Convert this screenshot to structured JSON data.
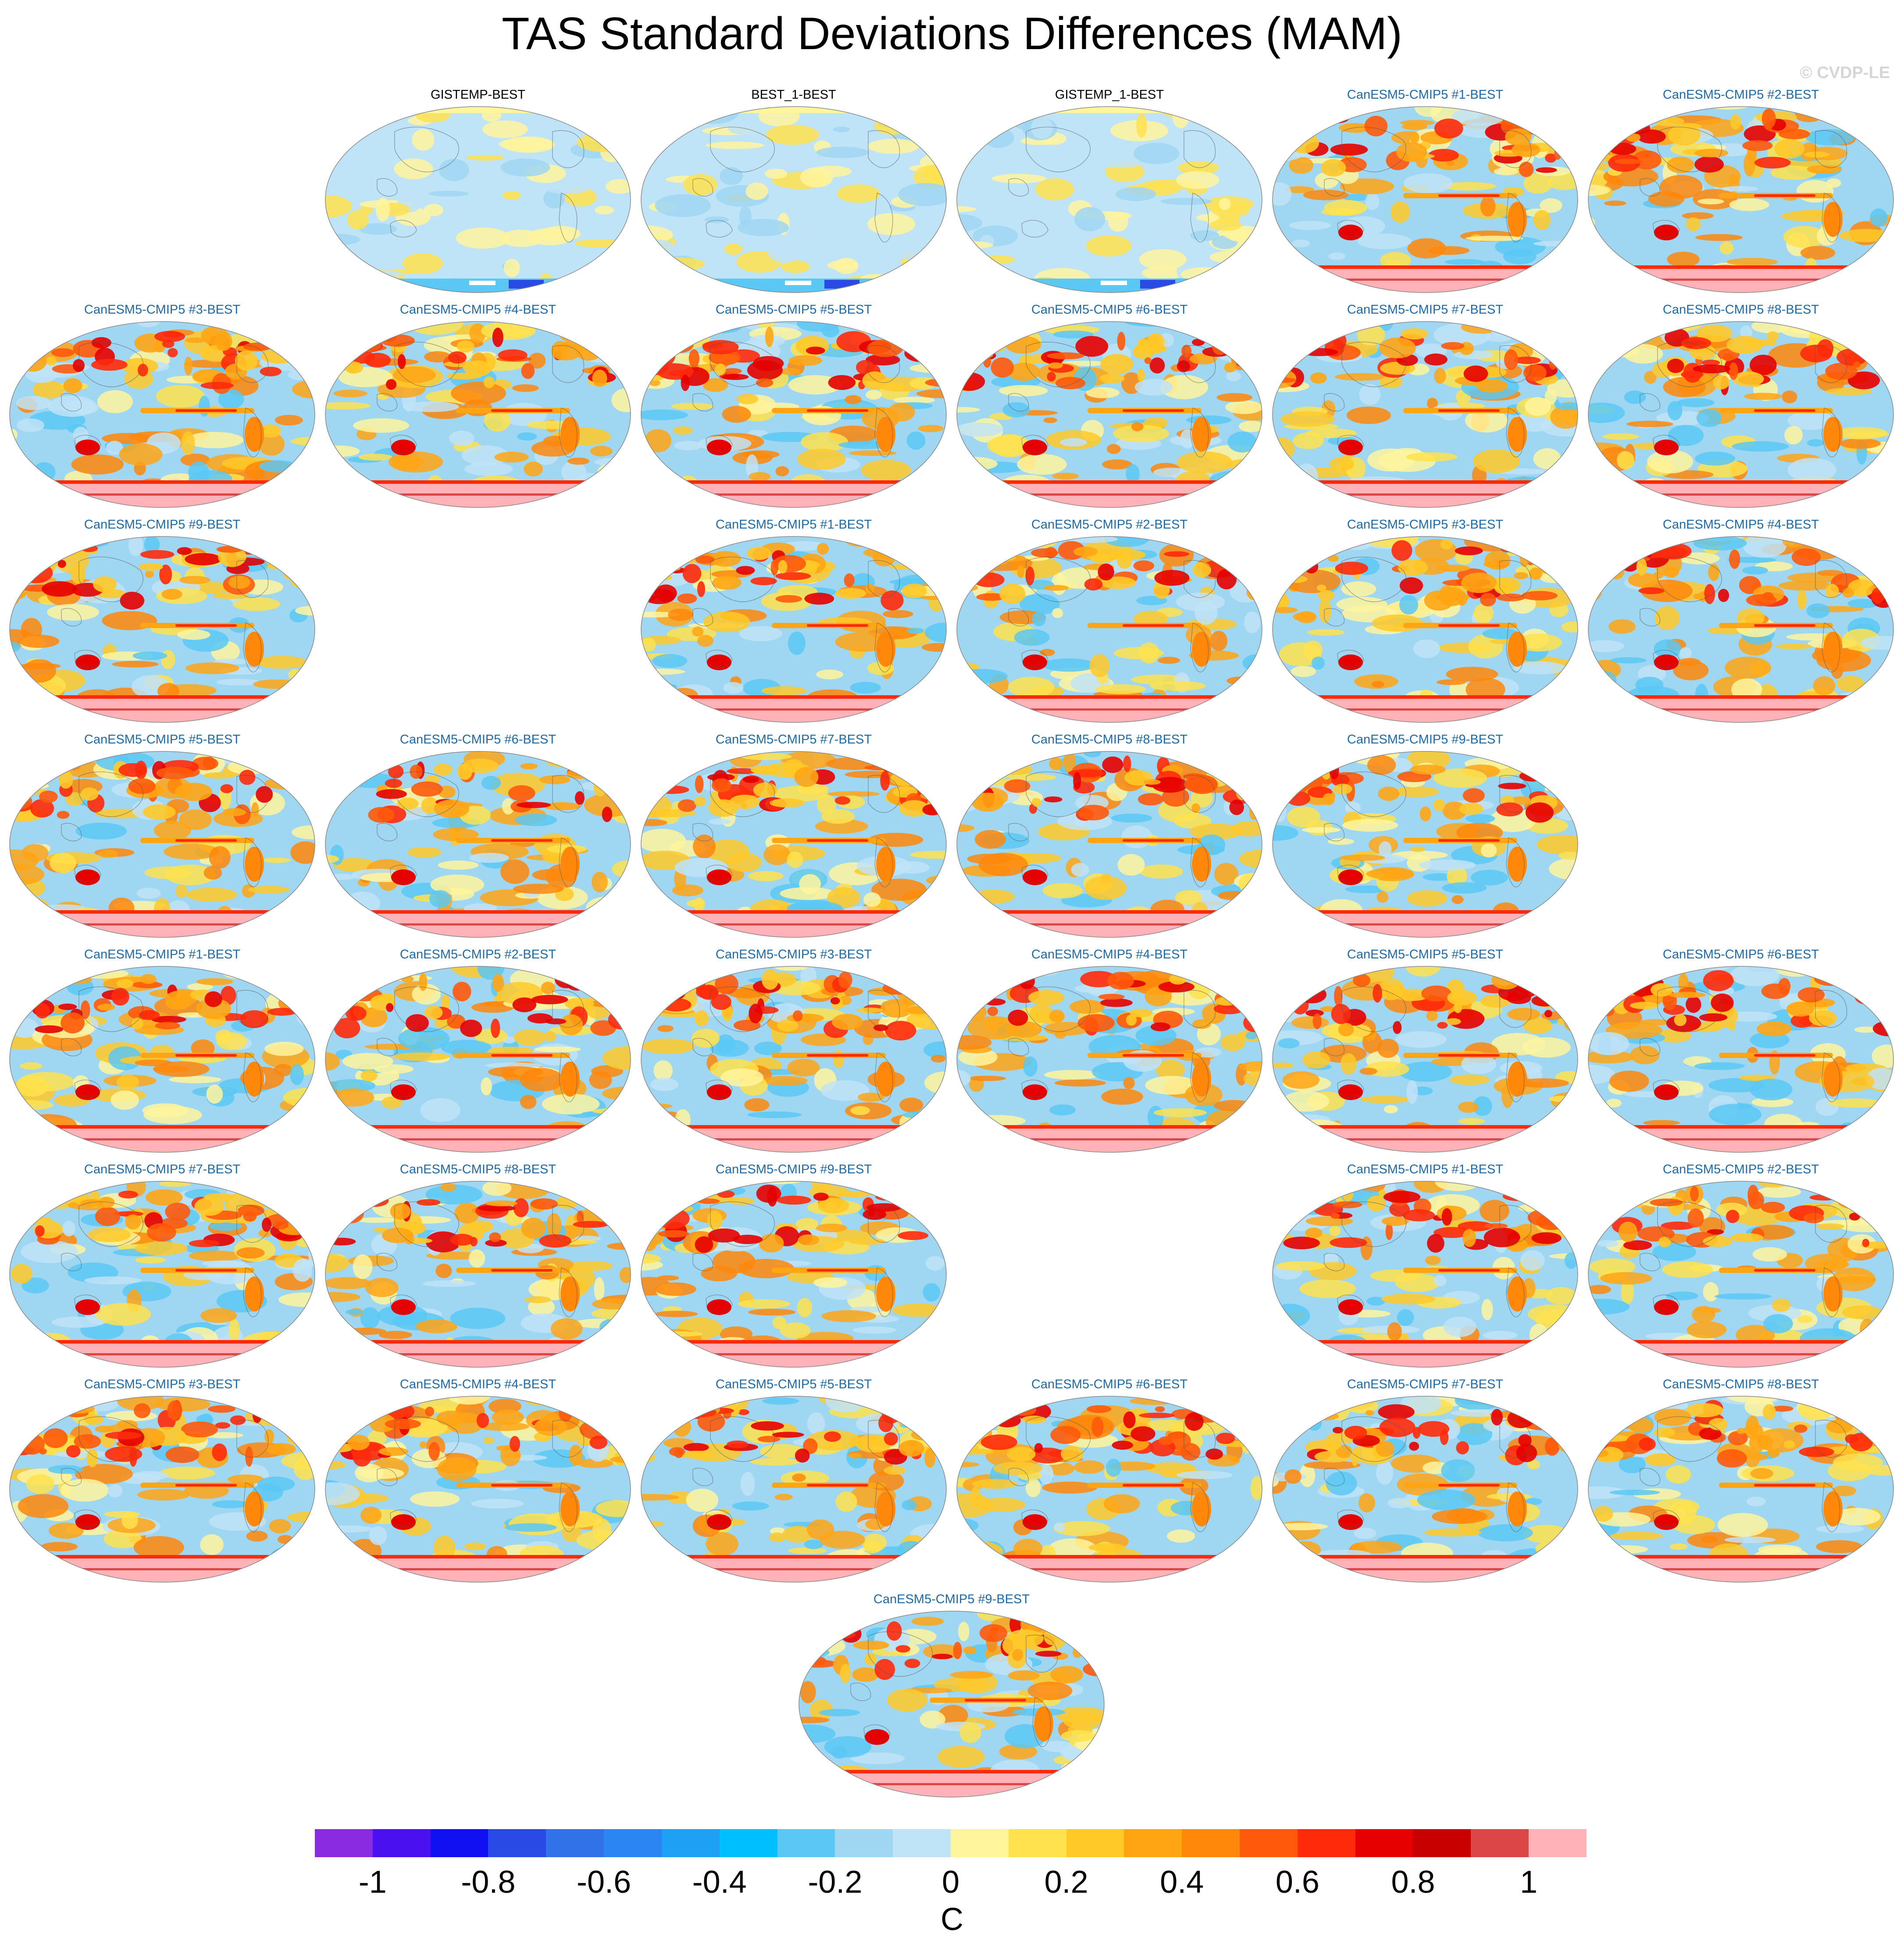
{
  "title": "TAS Standard Deviations Differences (MAM)",
  "watermark": "© CVDP-LE",
  "panels": [
    {
      "label": "GISTEMP-BEST",
      "type": "obs",
      "style": 0
    },
    {
      "label": "BEST_1-BEST",
      "type": "obs",
      "style": 1
    },
    {
      "label": "GISTEMP_1-BEST",
      "type": "obs",
      "style": 0
    },
    {
      "label": "CanESM5-CMIP5 #1-BEST",
      "type": "model",
      "style": 2
    },
    {
      "label": "CanESM5-CMIP5 #2-BEST",
      "type": "model",
      "style": 2
    },
    {
      "label": "CanESM5-CMIP5 #3-BEST",
      "type": "model",
      "style": 2
    },
    {
      "label": "CanESM5-CMIP5 #4-BEST",
      "type": "model",
      "style": 2
    },
    {
      "label": "CanESM5-CMIP5 #5-BEST",
      "type": "model",
      "style": 2
    },
    {
      "label": "CanESM5-CMIP5 #6-BEST",
      "type": "model",
      "style": 2
    },
    {
      "label": "CanESM5-CMIP5 #7-BEST",
      "type": "model",
      "style": 2
    },
    {
      "label": "CanESM5-CMIP5 #8-BEST",
      "type": "model",
      "style": 2
    },
    {
      "label": "CanESM5-CMIP5 #9-BEST",
      "type": "model",
      "style": 2
    },
    {
      "label": "CanESM5-CMIP5 #1-BEST",
      "type": "model",
      "style": 2
    },
    {
      "label": "CanESM5-CMIP5 #2-BEST",
      "type": "model",
      "style": 2
    },
    {
      "label": "CanESM5-CMIP5 #3-BEST",
      "type": "model",
      "style": 2
    },
    {
      "label": "CanESM5-CMIP5 #4-BEST",
      "type": "model",
      "style": 2
    },
    {
      "label": "CanESM5-CMIP5 #5-BEST",
      "type": "model",
      "style": 2
    },
    {
      "label": "CanESM5-CMIP5 #6-BEST",
      "type": "model",
      "style": 2
    },
    {
      "label": "CanESM5-CMIP5 #7-BEST",
      "type": "model",
      "style": 2
    },
    {
      "label": "CanESM5-CMIP5 #8-BEST",
      "type": "model",
      "style": 2
    },
    {
      "label": "CanESM5-CMIP5 #9-BEST",
      "type": "model",
      "style": 2
    },
    {
      "label": "CanESM5-CMIP5 #1-BEST",
      "type": "model",
      "style": 2
    },
    {
      "label": "CanESM5-CMIP5 #2-BEST",
      "type": "model",
      "style": 2
    },
    {
      "label": "CanESM5-CMIP5 #3-BEST",
      "type": "model",
      "style": 2
    },
    {
      "label": "CanESM5-CMIP5 #4-BEST",
      "type": "model",
      "style": 2
    },
    {
      "label": "CanESM5-CMIP5 #5-BEST",
      "type": "model",
      "style": 2
    },
    {
      "label": "CanESM5-CMIP5 #6-BEST",
      "type": "model",
      "style": 2
    },
    {
      "label": "CanESM5-CMIP5 #7-BEST",
      "type": "model",
      "style": 2
    },
    {
      "label": "CanESM5-CMIP5 #8-BEST",
      "type": "model",
      "style": 2
    },
    {
      "label": "CanESM5-CMIP5 #9-BEST",
      "type": "model",
      "style": 2
    },
    {
      "label": "CanESM5-CMIP5 #1-BEST",
      "type": "model",
      "style": 2
    },
    {
      "label": "CanESM5-CMIP5 #2-BEST",
      "type": "model",
      "style": 2
    },
    {
      "label": "CanESM5-CMIP5 #3-BEST",
      "type": "model",
      "style": 2
    },
    {
      "label": "CanESM5-CMIP5 #4-BEST",
      "type": "model",
      "style": 2
    },
    {
      "label": "CanESM5-CMIP5 #5-BEST",
      "type": "model",
      "style": 2
    },
    {
      "label": "CanESM5-CMIP5 #6-BEST",
      "type": "model",
      "style": 2
    },
    {
      "label": "CanESM5-CMIP5 #7-BEST",
      "type": "model",
      "style": 2
    },
    {
      "label": "CanESM5-CMIP5 #8-BEST",
      "type": "model",
      "style": 2
    },
    {
      "label": "CanESM5-CMIP5 #9-BEST",
      "type": "model",
      "style": 2
    }
  ],
  "colorbar": {
    "colors": [
      "#8a2be2",
      "#4b10f0",
      "#1010f0",
      "#2a4ae6",
      "#3272e8",
      "#2b85f2",
      "#1ea0f5",
      "#00bfff",
      "#5ac8f5",
      "#9fd6f2",
      "#bfe3f7",
      "#fff59d",
      "#ffe24d",
      "#ffc928",
      "#ffa514",
      "#ff870a",
      "#ff5a0a",
      "#ff2a0a",
      "#e60000",
      "#c80000",
      "#dc4646",
      "#ffb3b9"
    ],
    "tick_labels": [
      "-1",
      "-0.8",
      "-0.6",
      "-0.4",
      "-0.2",
      "0",
      "0.2",
      "0.4",
      "0.6",
      "0.8",
      "1"
    ],
    "units": "C"
  }
}
